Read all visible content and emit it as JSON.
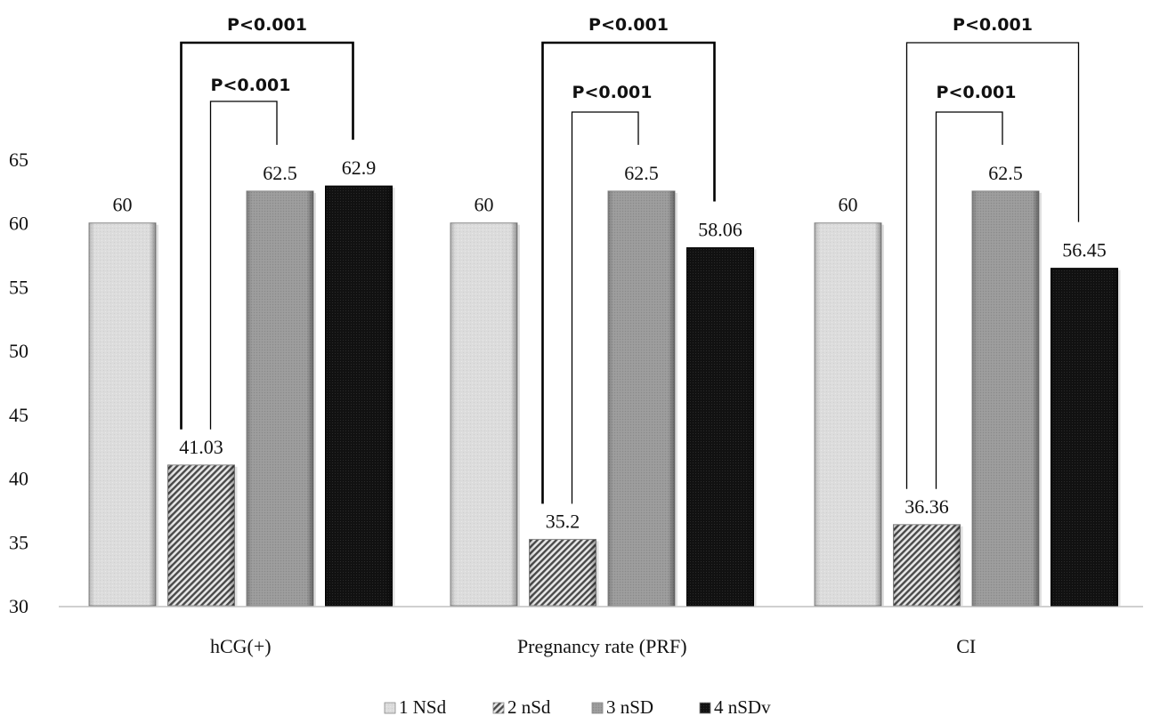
{
  "chart_data": {
    "type": "bar",
    "title": "",
    "xlabel": "",
    "ylabel": "",
    "ylim": [
      30,
      65
    ],
    "yticks": [
      30,
      35,
      40,
      45,
      50,
      55,
      60,
      65
    ],
    "grid": false,
    "legend_position": "bottom",
    "categories": [
      "hCG(+)",
      "Pregnancy rate (PRF)",
      "CI"
    ],
    "series": [
      {
        "name": "1 NSd",
        "values": [
          60,
          60,
          60
        ],
        "labels": [
          "60",
          "60",
          "60"
        ],
        "pattern": "light-gray-texture"
      },
      {
        "name": "2 nSd",
        "values": [
          41.03,
          35.2,
          36.36
        ],
        "labels": [
          "41.03",
          "35.2",
          "36.36"
        ],
        "pattern": "diagonal-hatch"
      },
      {
        "name": "3 nSD",
        "values": [
          62.5,
          62.5,
          62.5
        ],
        "labels": [
          "62.5",
          "62.5",
          "62.5"
        ],
        "pattern": "mid-gray-texture"
      },
      {
        "name": "4 nSDv",
        "values": [
          62.9,
          58.06,
          56.45
        ],
        "labels": [
          "62.9",
          "58.06",
          "56.45"
        ],
        "pattern": "black-texture"
      }
    ],
    "annotations": [
      {
        "category": "hCG(+)",
        "from_series": "2 nSd",
        "to_series": "4 nSDv",
        "text": "P<0.001",
        "level": "outer",
        "bold": true
      },
      {
        "category": "hCG(+)",
        "from_series": "2 nSd",
        "to_series": "3 nSD",
        "text": "P<0.001",
        "level": "inner",
        "bold": false
      },
      {
        "category": "Pregnancy rate (PRF)",
        "from_series": "2 nSd",
        "to_series": "4 nSDv",
        "text": "P<0.001",
        "level": "outer",
        "bold": true
      },
      {
        "category": "Pregnancy rate (PRF)",
        "from_series": "2 nSd",
        "to_series": "3 nSD",
        "text": "P<0.001",
        "level": "inner",
        "bold": false
      },
      {
        "category": "CI",
        "from_series": "2 nSd",
        "to_series": "4 nSDv",
        "text": "P<0.001",
        "level": "outer",
        "bold": false
      },
      {
        "category": "CI",
        "from_series": "2 nSd",
        "to_series": "3 nSD",
        "text": "P<0.001",
        "level": "inner",
        "bold": false
      }
    ]
  }
}
